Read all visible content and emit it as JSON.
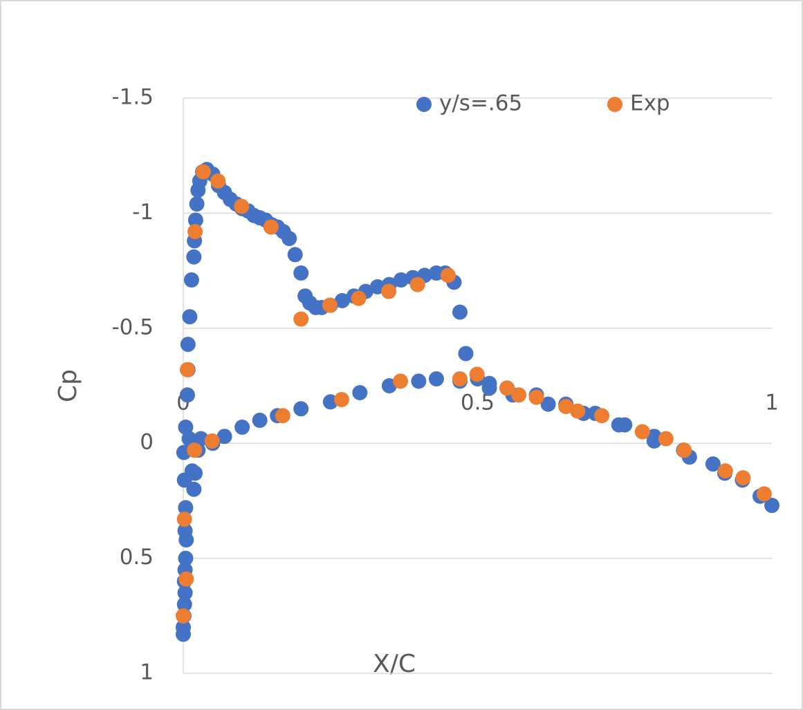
{
  "chart_data": {
    "type": "scatter",
    "x_label": "X/C",
    "y_label": "Cp",
    "xlim": [
      0,
      1
    ],
    "xticks": [
      0,
      0.5,
      1
    ],
    "ylim": [
      -1.5,
      1
    ],
    "yticks": [
      -1.5,
      -1,
      -0.5,
      0,
      0.5,
      1
    ],
    "y_reversed": true,
    "grid": true,
    "legend": "top",
    "series": [
      {
        "name": "y/s=.65",
        "color": "#4472c4",
        "x": [
          0.0,
          0.0,
          0.001,
          0.002,
          0.003,
          0.002,
          0.003,
          0.004,
          0.005,
          0.003,
          0.004,
          0.002,
          0.001,
          0.004,
          0.007,
          0.008,
          0.008,
          0.011,
          0.014,
          0.018,
          0.019,
          0.021,
          0.023,
          0.025,
          0.028,
          0.033,
          0.04,
          0.05,
          0.06,
          0.07,
          0.08,
          0.09,
          0.1,
          0.11,
          0.12,
          0.13,
          0.14,
          0.15,
          0.16,
          0.17,
          0.18,
          0.19,
          0.2,
          0.207,
          0.215,
          0.225,
          0.235,
          0.25,
          0.27,
          0.29,
          0.31,
          0.33,
          0.35,
          0.37,
          0.39,
          0.41,
          0.43,
          0.445,
          0.46,
          0.47,
          0.48,
          0.5,
          0.52,
          0.55,
          0.6,
          0.65,
          0.7,
          0.75,
          0.8,
          0.85,
          0.9,
          0.95,
          1.0,
          0.01,
          0.015,
          0.018,
          0.02,
          0.025,
          0.03,
          0.05,
          0.07,
          0.1,
          0.13,
          0.16,
          0.2,
          0.25,
          0.3,
          0.35,
          0.4,
          0.43,
          0.47,
          0.52,
          0.56,
          0.62,
          0.68,
          0.74,
          0.8,
          0.86,
          0.92,
          0.98
        ],
        "values": [
          0.83,
          0.8,
          0.75,
          0.7,
          0.65,
          0.6,
          0.55,
          0.5,
          0.42,
          0.38,
          0.28,
          0.16,
          0.04,
          -0.07,
          -0.21,
          -0.32,
          -0.43,
          -0.55,
          -0.71,
          -0.81,
          -0.88,
          -0.97,
          -1.04,
          -1.1,
          -1.14,
          -1.18,
          -1.19,
          -1.17,
          -1.12,
          -1.09,
          -1.06,
          -1.04,
          -1.02,
          -1.01,
          -0.99,
          -0.98,
          -0.97,
          -0.95,
          -0.94,
          -0.92,
          -0.89,
          -0.82,
          -0.74,
          -0.64,
          -0.61,
          -0.59,
          -0.59,
          -0.6,
          -0.62,
          -0.64,
          -0.66,
          -0.68,
          -0.69,
          -0.71,
          -0.72,
          -0.73,
          -0.74,
          -0.74,
          -0.7,
          -0.57,
          -0.39,
          -0.28,
          -0.26,
          -0.24,
          -0.21,
          -0.17,
          -0.13,
          -0.08,
          -0.03,
          0.03,
          0.09,
          0.16,
          0.27,
          -0.02,
          0.12,
          0.2,
          0.13,
          0.03,
          -0.02,
          0.0,
          -0.03,
          -0.07,
          -0.1,
          -0.12,
          -0.15,
          -0.18,
          -0.22,
          -0.25,
          -0.27,
          -0.28,
          -0.27,
          -0.24,
          -0.21,
          -0.17,
          -0.13,
          -0.08,
          -0.01,
          0.06,
          0.13,
          0.23
        ]
      },
      {
        "name": "Exp",
        "color": "#ed7d31",
        "x": [
          0.0,
          0.002,
          0.005,
          0.007,
          0.019,
          0.02,
          0.034,
          0.049,
          0.059,
          0.099,
          0.149,
          0.169,
          0.2,
          0.249,
          0.269,
          0.298,
          0.349,
          0.369,
          0.398,
          0.45,
          0.47,
          0.499,
          0.55,
          0.57,
          0.6,
          0.65,
          0.67,
          0.711,
          0.78,
          0.82,
          0.851,
          0.921,
          0.951,
          0.987
        ],
        "values": [
          0.75,
          0.33,
          0.59,
          -0.32,
          0.03,
          -0.92,
          -1.18,
          -0.01,
          -1.14,
          -1.03,
          -0.94,
          -0.12,
          -0.54,
          -0.6,
          -0.19,
          -0.63,
          -0.66,
          -0.27,
          -0.69,
          -0.73,
          -0.28,
          -0.3,
          -0.24,
          -0.21,
          -0.2,
          -0.16,
          -0.14,
          -0.12,
          -0.05,
          -0.02,
          0.03,
          0.12,
          0.15,
          0.22
        ]
      }
    ]
  }
}
